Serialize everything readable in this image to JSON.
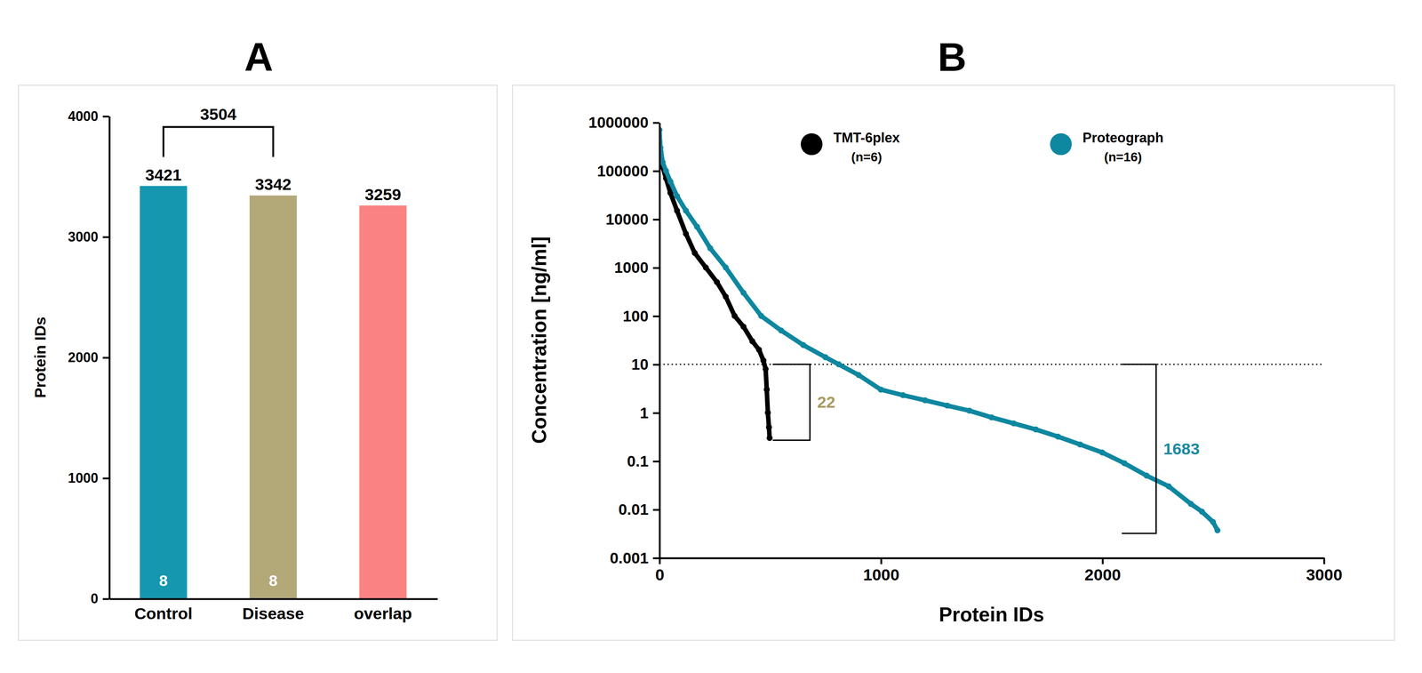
{
  "chart_data": [
    {
      "type": "bar",
      "title": "A",
      "y_label": "Protein IDs",
      "categories": [
        "Control",
        "Disease",
        "overlap"
      ],
      "values": [
        3421,
        3342,
        3259
      ],
      "colors": [
        "#1597b0",
        "#b3a878",
        "#fb8282"
      ],
      "sample_sizes": [
        8,
        8,
        null
      ],
      "ylim": [
        0,
        4000
      ],
      "yticks": [
        0,
        1000,
        2000,
        3000,
        4000
      ],
      "data_labels": true,
      "annotations": [
        {
          "text": "3504",
          "between": [
            "Control",
            "Disease"
          ]
        }
      ]
    },
    {
      "type": "scatter",
      "title": "B",
      "x_label": "Protein IDs",
      "y_label": "Concentration [ng/ml]",
      "log": "y",
      "xlim": [
        0,
        3000
      ],
      "xticks": [
        0,
        1000,
        2000,
        3000
      ],
      "ylim": [
        0.001,
        1000000
      ],
      "yticks": [
        0.001,
        0.01,
        0.1,
        1,
        10,
        100,
        1000,
        10000,
        100000,
        1000000
      ],
      "legend": "top",
      "series": [
        {
          "name": "TMT-6plex",
          "note": "(n=6)",
          "color": "#000000",
          "marker": "circle",
          "x": [
            0,
            5,
            15,
            30,
            50,
            80,
            120,
            160,
            210,
            260,
            300,
            340,
            380,
            420,
            450,
            470,
            480,
            485,
            490,
            495,
            498
          ],
          "values": [
            700000,
            250000,
            120000,
            70000,
            35000,
            15000,
            5000,
            2000,
            1000,
            500,
            250,
            100,
            60,
            30,
            20,
            12,
            8,
            3,
            1,
            0.5,
            0.3
          ]
        },
        {
          "name": "Proteograph",
          "note": "(n=16)",
          "color": "#0e87a0",
          "marker": "circle",
          "x": [
            0,
            5,
            15,
            30,
            50,
            80,
            120,
            170,
            230,
            300,
            380,
            460,
            550,
            650,
            750,
            810,
            900,
            1000,
            1100,
            1200,
            1300,
            1400,
            1500,
            1600,
            1700,
            1800,
            1900,
            2000,
            2100,
            2200,
            2300,
            2400,
            2450,
            2500,
            2520
          ],
          "values": [
            700000,
            300000,
            150000,
            100000,
            60000,
            30000,
            15000,
            7000,
            2500,
            1000,
            300,
            100,
            50,
            25,
            14,
            10,
            6,
            3,
            2.3,
            1.8,
            1.4,
            1.1,
            0.8,
            0.6,
            0.45,
            0.32,
            0.22,
            0.15,
            0.09,
            0.05,
            0.03,
            0.013,
            0.009,
            0.0055,
            0.0037
          ]
        }
      ],
      "reference_lines": [
        {
          "y": 10,
          "line_style": "dotted"
        }
      ],
      "annotations": [
        {
          "text": "22",
          "color": "#a89a5f",
          "x_range": [
            512,
            680
          ],
          "y_range": [
            0.27,
            10
          ]
        },
        {
          "text": "1683",
          "color": "#1a8aa3",
          "x_range": [
            2088,
            2243
          ],
          "y_range": [
            0.0032,
            10
          ]
        }
      ]
    }
  ]
}
